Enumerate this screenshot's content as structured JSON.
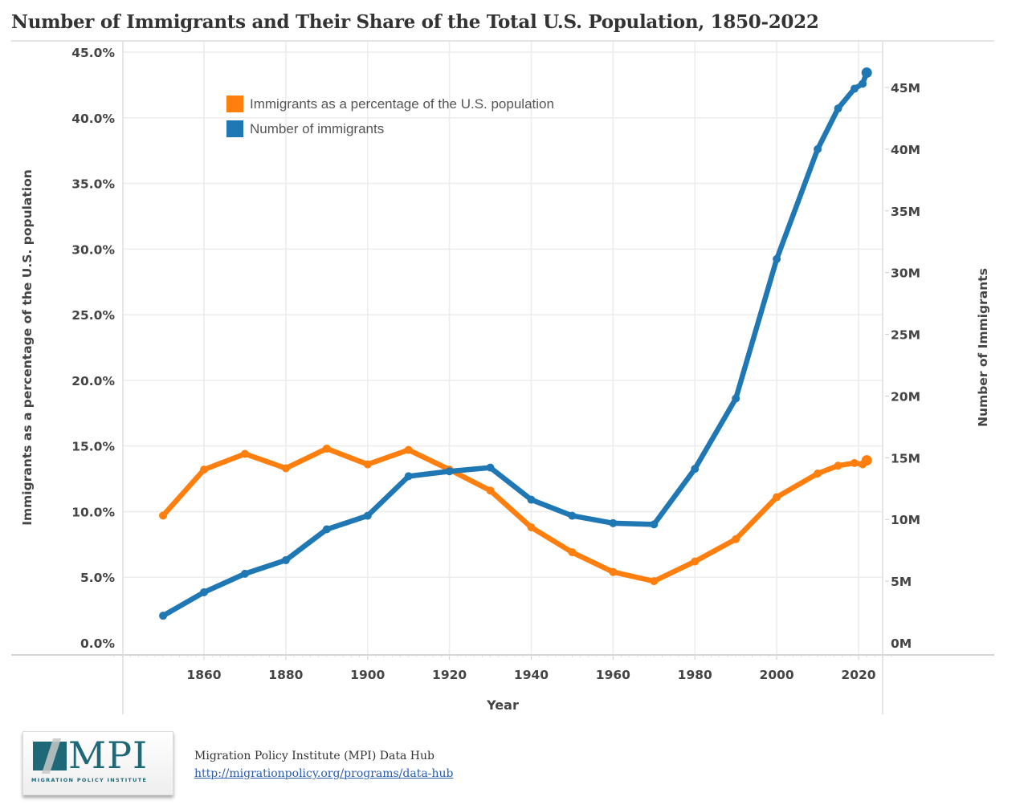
{
  "header": {
    "title": "Number of Immigrants and Their Share of the Total U.S. Population, 1850-2022"
  },
  "footer": {
    "logo_text": "MPI",
    "logo_subtext": "MIGRATION POLICY INSTITUTE",
    "source_name": "Migration Policy Institute (MPI) Data Hub",
    "source_link": "http://migrationpolicy.org/programs/data-hub"
  },
  "chart_data": {
    "type": "line",
    "title": "Number of Immigrants and Their Share of the Total U.S. Population, 1850-2022",
    "xlabel": "Year",
    "ylabel": "Immigrants as a percentage of the U.S. population",
    "y2label": "Number of Immigrants",
    "xlim": [
      1837,
      2029
    ],
    "ylim": [
      0,
      45
    ],
    "y2lim": [
      0,
      45
    ],
    "grid": true,
    "legend_position": "top-left",
    "x_ticks": [
      1860,
      1880,
      1900,
      1920,
      1940,
      1960,
      1980,
      2000,
      2020
    ],
    "y_ticks": [
      "0.0%",
      "5.0%",
      "10.0%",
      "15.0%",
      "20.0%",
      "25.0%",
      "30.0%",
      "35.0%",
      "40.0%",
      "45.0%"
    ],
    "y_tick_values": [
      0,
      5,
      10,
      15,
      20,
      25,
      30,
      35,
      40,
      45
    ],
    "y2_ticks": [
      "0M",
      "5M",
      "10M",
      "15M",
      "20M",
      "25M",
      "30M",
      "35M",
      "40M",
      "45M"
    ],
    "y2_tick_values": [
      0,
      5,
      10,
      15,
      20,
      25,
      30,
      35,
      40,
      45
    ],
    "x": [
      1850,
      1860,
      1870,
      1880,
      1890,
      1900,
      1910,
      1920,
      1930,
      1940,
      1950,
      1960,
      1970,
      1980,
      1990,
      2000,
      2010,
      2015,
      2019,
      2021,
      2022
    ],
    "series": [
      {
        "name": "Immigrants as a percentage of the U.S. population",
        "axis": "left",
        "unit": "%",
        "color": "#ff7f0e",
        "values": [
          9.7,
          13.2,
          14.4,
          13.3,
          14.8,
          13.6,
          14.7,
          13.2,
          11.6,
          8.8,
          6.9,
          5.4,
          4.7,
          6.2,
          7.9,
          11.1,
          12.9,
          13.5,
          13.7,
          13.6,
          13.9
        ]
      },
      {
        "name": "Number of immigrants",
        "axis": "right",
        "unit": "millions",
        "color": "#1f77b4",
        "values": [
          2.2,
          4.1,
          5.6,
          6.7,
          9.2,
          10.3,
          13.5,
          13.9,
          14.2,
          11.6,
          10.3,
          9.7,
          9.6,
          14.1,
          19.8,
          31.1,
          40.0,
          43.3,
          44.9,
          45.3,
          46.2
        ]
      }
    ]
  }
}
